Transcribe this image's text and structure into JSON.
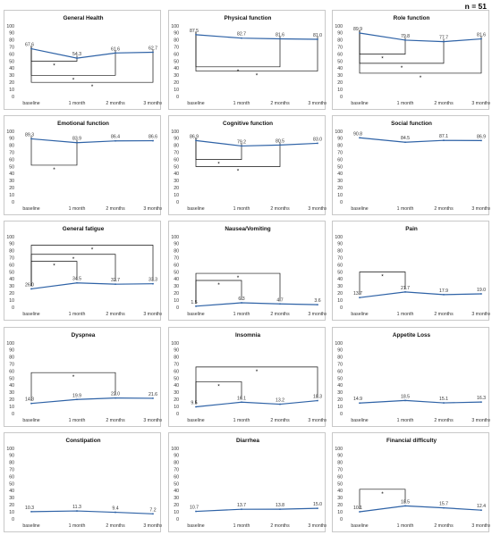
{
  "n_label": "n = 51",
  "chart_data": [
    {
      "type": "line",
      "title": "General Health",
      "categories": [
        "baseline",
        "1 month",
        "2 months",
        "3 months"
      ],
      "values": [
        67.6,
        54.3,
        61.6,
        62.7
      ],
      "labels": [
        "67.6",
        "54.3",
        "61.6",
        "62.7"
      ],
      "ylim": [
        0,
        100
      ],
      "yticks": [
        0,
        10,
        20,
        30,
        40,
        50,
        60,
        70,
        80,
        90,
        100
      ],
      "series_color": "#2e62a6",
      "brackets": [
        {
          "from": "baseline",
          "to": "1 month",
          "level": 50,
          "star": "*"
        },
        {
          "from": "baseline",
          "to": "2 months",
          "level": 30,
          "star": "*"
        },
        {
          "from": "baseline",
          "to": "3 months",
          "level": 20,
          "star": "*"
        }
      ]
    },
    {
      "type": "line",
      "title": "Physical function",
      "categories": [
        "baseline",
        "1 month",
        "2 months",
        "3 months"
      ],
      "values": [
        87.5,
        82.7,
        81.6,
        81.0
      ],
      "labels": [
        "87.5",
        "82.7",
        "81.6",
        "81.0"
      ],
      "ylim": [
        0,
        100
      ],
      "yticks": [
        0,
        10,
        20,
        30,
        40,
        50,
        60,
        70,
        80,
        90,
        100
      ],
      "series_color": "#2e62a6",
      "brackets": [
        {
          "from": "baseline",
          "to": "2 months",
          "level": 42,
          "star": "*"
        },
        {
          "from": "baseline",
          "to": "3 months",
          "level": 36,
          "star": "*"
        }
      ]
    },
    {
      "type": "line",
      "title": "Role function",
      "categories": [
        "baseline",
        "1 month",
        "2 months",
        "3 months"
      ],
      "values": [
        89.9,
        79.8,
        77.7,
        81.6
      ],
      "labels": [
        "89.9",
        "79.8",
        "77.7",
        "81.6"
      ],
      "ylim": [
        0,
        100
      ],
      "yticks": [
        0,
        10,
        20,
        30,
        40,
        50,
        60,
        70,
        80,
        90,
        100
      ],
      "series_color": "#2e62a6",
      "brackets": [
        {
          "from": "baseline",
          "to": "1 month",
          "level": 60,
          "star": "*"
        },
        {
          "from": "baseline",
          "to": "2 months",
          "level": 47,
          "star": "*"
        },
        {
          "from": "baseline",
          "to": "3 months",
          "level": 33,
          "star": "*"
        }
      ]
    },
    {
      "type": "line",
      "title": "Emotional function",
      "categories": [
        "baseline",
        "1 month",
        "2 months",
        "3 months"
      ],
      "values": [
        89.3,
        83.9,
        86.4,
        86.6
      ],
      "labels": [
        "89.3",
        "83.9",
        "86.4",
        "86.6"
      ],
      "ylim": [
        0,
        100
      ],
      "yticks": [
        0,
        10,
        20,
        30,
        40,
        50,
        60,
        70,
        80,
        90,
        100
      ],
      "series_color": "#2e62a6",
      "brackets": [
        {
          "from": "baseline",
          "to": "1 month",
          "level": 52,
          "star": "*"
        }
      ]
    },
    {
      "type": "line",
      "title": "Cognitive function",
      "categories": [
        "baseline",
        "1 month",
        "2 months",
        "3 months"
      ],
      "values": [
        86.9,
        79.2,
        80.5,
        83.0
      ],
      "labels": [
        "86.9",
        "79.2",
        "80.5",
        "83.0"
      ],
      "ylim": [
        0,
        100
      ],
      "yticks": [
        0,
        10,
        20,
        30,
        40,
        50,
        60,
        70,
        80,
        90,
        100
      ],
      "series_color": "#2e62a6",
      "brackets": [
        {
          "from": "baseline",
          "to": "1 month",
          "level": 60,
          "star": "*"
        },
        {
          "from": "baseline",
          "to": "2 months",
          "level": 50,
          "star": "*"
        }
      ]
    },
    {
      "type": "line",
      "title": "Social function",
      "categories": [
        "baseline",
        "1 month",
        "2 months",
        "3 months"
      ],
      "values": [
        90.8,
        84.5,
        87.1,
        86.9
      ],
      "labels": [
        "90.8",
        "84.5",
        "87.1",
        "86.9"
      ],
      "ylim": [
        0,
        100
      ],
      "yticks": [
        0,
        10,
        20,
        30,
        40,
        50,
        60,
        70,
        80,
        90,
        100
      ],
      "series_color": "#2e62a6",
      "brackets": []
    },
    {
      "type": "line",
      "title": "General fatigue",
      "categories": [
        "baseline",
        "1 month",
        "2 months",
        "3 months"
      ],
      "values": [
        26.0,
        34.5,
        32.7,
        33.3
      ],
      "labels": [
        "26.0",
        "34.5",
        "32.7",
        "33.3"
      ],
      "ylim": [
        0,
        100
      ],
      "yticks": [
        0,
        10,
        20,
        30,
        40,
        50,
        60,
        70,
        80,
        90,
        100
      ],
      "series_color": "#2e62a6",
      "brackets": [
        {
          "from": "baseline",
          "to": "1 month",
          "level": 65,
          "star": "*"
        },
        {
          "from": "baseline",
          "to": "2 months",
          "level": 75,
          "star": "*"
        },
        {
          "from": "baseline",
          "to": "3 months",
          "level": 88,
          "star": "*"
        }
      ]
    },
    {
      "type": "line",
      "title": "Nausea/Vomiting",
      "categories": [
        "baseline",
        "1 month",
        "2 months",
        "3 months"
      ],
      "values": [
        1.5,
        6.3,
        4.7,
        3.6
      ],
      "labels": [
        "1.5",
        "6.3",
        "4.7",
        "3.6"
      ],
      "ylim": [
        0,
        100
      ],
      "yticks": [
        0,
        10,
        20,
        30,
        40,
        50,
        60,
        70,
        80,
        90,
        100
      ],
      "series_color": "#2e62a6",
      "brackets": [
        {
          "from": "baseline",
          "to": "1 month",
          "level": 38,
          "star": "*"
        },
        {
          "from": "baseline",
          "to": "2 months",
          "level": 48,
          "star": "*"
        }
      ]
    },
    {
      "type": "line",
      "title": "Pain",
      "categories": [
        "baseline",
        "1 month",
        "2 months",
        "3 months"
      ],
      "values": [
        13.7,
        21.7,
        17.9,
        19.0
      ],
      "labels": [
        "13.7",
        "21.7",
        "17.9",
        "19.0"
      ],
      "ylim": [
        0,
        100
      ],
      "yticks": [
        0,
        10,
        20,
        30,
        40,
        50,
        60,
        70,
        80,
        90,
        100
      ],
      "series_color": "#2e62a6",
      "brackets": [
        {
          "from": "baseline",
          "to": "1 month",
          "level": 50,
          "star": "*"
        }
      ]
    },
    {
      "type": "line",
      "title": "Dyspnea",
      "categories": [
        "baseline",
        "1 month",
        "2 months",
        "3 months"
      ],
      "values": [
        14.3,
        19.9,
        22.0,
        21.6
      ],
      "labels": [
        "14.3",
        "19.9",
        "22.0",
        "21.6"
      ],
      "ylim": [
        0,
        100
      ],
      "yticks": [
        0,
        10,
        20,
        30,
        40,
        50,
        60,
        70,
        80,
        90,
        100
      ],
      "series_color": "#2e62a6",
      "brackets": [
        {
          "from": "baseline",
          "to": "2 months",
          "level": 58,
          "star": "*"
        }
      ]
    },
    {
      "type": "line",
      "title": "Insomnia",
      "categories": [
        "baseline",
        "1 month",
        "2 months",
        "3 months"
      ],
      "values": [
        9.5,
        16.1,
        13.2,
        18.3
      ],
      "labels": [
        "9.5",
        "16.1",
        "13.2",
        "18.3"
      ],
      "ylim": [
        0,
        100
      ],
      "yticks": [
        0,
        10,
        20,
        30,
        40,
        50,
        60,
        70,
        80,
        90,
        100
      ],
      "series_color": "#2e62a6",
      "brackets": [
        {
          "from": "baseline",
          "to": "1 month",
          "level": 45,
          "star": "*"
        },
        {
          "from": "baseline",
          "to": "3 months",
          "level": 66,
          "star": "*"
        }
      ]
    },
    {
      "type": "line",
      "title": "Appetite Loss",
      "categories": [
        "baseline",
        "1 month",
        "2 months",
        "3 months"
      ],
      "values": [
        14.9,
        18.5,
        15.1,
        16.3
      ],
      "labels": [
        "14.9",
        "18.5",
        "15.1",
        "16.3"
      ],
      "ylim": [
        0,
        100
      ],
      "yticks": [
        0,
        10,
        20,
        30,
        40,
        50,
        60,
        70,
        80,
        90,
        100
      ],
      "series_color": "#2e62a6",
      "brackets": []
    },
    {
      "type": "line",
      "title": "Constipation",
      "categories": [
        "baseline",
        "1 month",
        "2 months",
        "3 months"
      ],
      "values": [
        10.3,
        11.3,
        9.4,
        7.2
      ],
      "labels": [
        "10.3",
        "11.3",
        "9.4",
        "7.2"
      ],
      "ylim": [
        0,
        100
      ],
      "yticks": [
        0,
        10,
        20,
        30,
        40,
        50,
        60,
        70,
        80,
        90,
        100
      ],
      "series_color": "#2e62a6",
      "brackets": []
    },
    {
      "type": "line",
      "title": "Diarrhea",
      "categories": [
        "baseline",
        "1 month",
        "2 months",
        "3 months"
      ],
      "values": [
        10.7,
        13.7,
        13.8,
        15.0
      ],
      "labels": [
        "10.7",
        "13.7",
        "13.8",
        "15.0"
      ],
      "ylim": [
        0,
        100
      ],
      "yticks": [
        0,
        10,
        20,
        30,
        40,
        50,
        60,
        70,
        80,
        90,
        100
      ],
      "series_color": "#2e62a6",
      "brackets": []
    },
    {
      "type": "line",
      "title": "Financial difficulty",
      "categories": [
        "baseline",
        "1 month",
        "2 months",
        "3 months"
      ],
      "values": [
        10.1,
        18.5,
        15.7,
        12.4
      ],
      "labels": [
        "10.1",
        "18.5",
        "15.7",
        "12.4"
      ],
      "ylim": [
        0,
        100
      ],
      "yticks": [
        0,
        10,
        20,
        30,
        40,
        50,
        60,
        70,
        80,
        90,
        100
      ],
      "series_color": "#2e62a6",
      "brackets": [
        {
          "from": "baseline",
          "to": "1 month",
          "level": 42,
          "star": "*"
        }
      ]
    }
  ]
}
